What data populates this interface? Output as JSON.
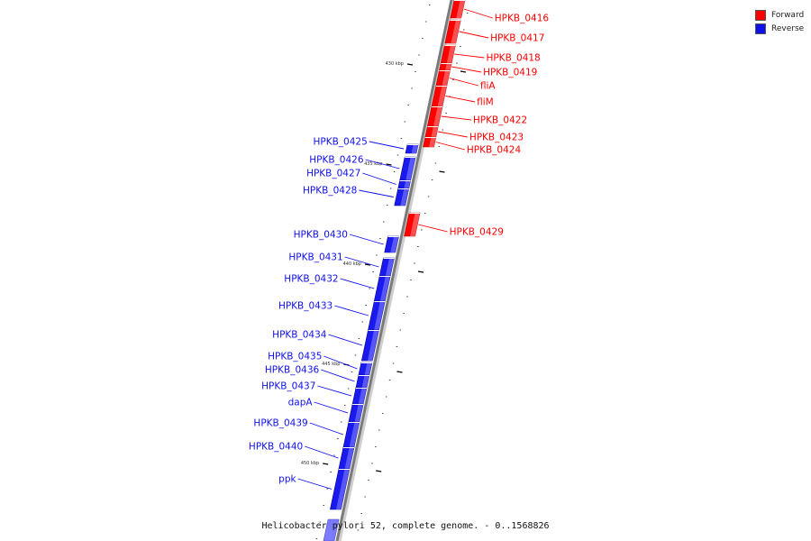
{
  "caption": "Helicobacter pylori 52, complete genome. - 0..1568826",
  "legend": {
    "forward_label": "Forward",
    "reverse_label": "Reverse",
    "forward_color": "#ff0000",
    "reverse_color": "#1010ee"
  },
  "ticks": [
    "430 kbp",
    "435 kbp",
    "440 kbp",
    "445 kbp",
    "450 kbp"
  ],
  "forward_genes": [
    "HPKB_0416",
    "HPKB_0417",
    "HPKB_0418",
    "HPKB_0419",
    "fliA",
    "fliM",
    "HPKB_0422",
    "HPKB_0423",
    "HPKB_0424",
    "HPKB_0429"
  ],
  "reverse_genes": [
    "HPKB_0425",
    "HPKB_0426",
    "HPKB_0427",
    "HPKB_0428",
    "HPKB_0430",
    "HPKB_0431",
    "HPKB_0432",
    "HPKB_0433",
    "HPKB_0434",
    "HPKB_0435",
    "HPKB_0436",
    "HPKB_0437",
    "dapA",
    "HPKB_0439",
    "HPKB_0440",
    "ppk"
  ]
}
